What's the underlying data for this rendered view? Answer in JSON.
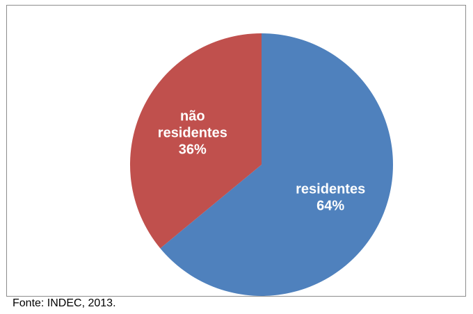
{
  "chart_data": {
    "type": "pie",
    "title": "",
    "slices": [
      {
        "label_lines": [
          "residentes"
        ],
        "percent_label": "64%",
        "value": 64,
        "color": "#4f81bd"
      },
      {
        "label_lines": [
          "não",
          "residentes"
        ],
        "percent_label": "36%",
        "value": 36,
        "color": "#c0504d"
      }
    ],
    "start_angle_deg": 0,
    "direction": "clockwise",
    "legend": "none"
  },
  "source_note": "Fonte: INDEC, 2013."
}
